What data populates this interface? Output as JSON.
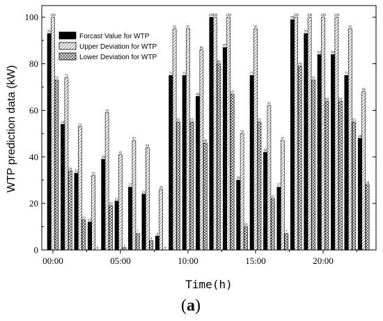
{
  "chart_data": {
    "type": "bar",
    "title": "",
    "xlabel": "Time(h)",
    "ylabel": "WTP prediction data (kW)",
    "ylim": [
      0,
      105
    ],
    "yticks": [
      "0",
      "20",
      "40",
      "60",
      "80",
      "100"
    ],
    "xticks": [
      {
        "hour": 0,
        "label": "00:00"
      },
      {
        "hour": 5,
        "label": "05:00"
      },
      {
        "hour": 10,
        "label": "10:00"
      },
      {
        "hour": 15,
        "label": "15:00"
      },
      {
        "hour": 20,
        "label": "20:00"
      }
    ],
    "x": [
      0,
      1,
      2,
      3,
      4,
      5,
      6,
      7,
      8,
      9,
      10,
      11,
      12,
      13,
      14,
      15,
      16,
      17,
      18,
      19,
      20,
      21,
      22,
      23
    ],
    "series": [
      {
        "name": "Forcast Value for WTP",
        "pattern": "solid",
        "values": [
          93,
          54,
          33,
          12,
          39,
          21,
          27,
          24,
          6,
          75,
          75,
          66,
          100,
          87,
          30,
          75,
          42,
          27,
          99,
          93,
          84,
          84,
          75,
          48
        ]
      },
      {
        "name": "Upper Deviation for WTP",
        "pattern": "hatch",
        "values": [
          100,
          74,
          53,
          32,
          59,
          41,
          47,
          44,
          26,
          95,
          95,
          86,
          100,
          100,
          50,
          95,
          62,
          47,
          100,
          100,
          100,
          100,
          95,
          68
        ]
      },
      {
        "name": "Lower Deviation for WTP",
        "pattern": "cross",
        "values": [
          73,
          34,
          13,
          0,
          19,
          1,
          7,
          4,
          0,
          55,
          55,
          46,
          80,
          67,
          10,
          55,
          22,
          7,
          79,
          73,
          64,
          64,
          55,
          28
        ]
      }
    ],
    "legend": "top-left",
    "grid": false,
    "caption": "(a)"
  }
}
